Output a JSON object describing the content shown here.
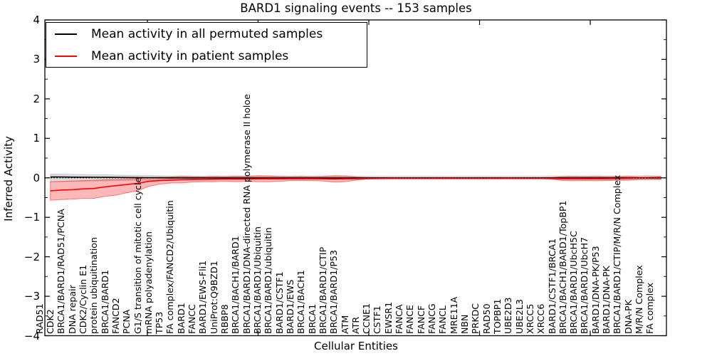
{
  "title": "BARD1 signaling events -- 153 samples",
  "legend": [
    {
      "label": "Mean activity in all permuted samples",
      "color": "#000000"
    },
    {
      "label": "Mean activity in patient samples",
      "color": "#ff0000"
    }
  ],
  "axes": {
    "xlabel": "Cellular Entities",
    "ylabel": "Inferred Activity",
    "yticklabels": [
      "4",
      "3",
      "2",
      "1",
      "0",
      "−1",
      "−2",
      "−3",
      "−4"
    ]
  },
  "chart_data": {
    "type": "line",
    "title": "BARD1 signaling events -- 153 samples",
    "xlabel": "Cellular Entities",
    "ylabel": "Inferred Activity",
    "ylim": [
      -4,
      4
    ],
    "yticks": [
      -4,
      -3,
      -2,
      -1,
      0,
      1,
      2,
      3,
      4
    ],
    "ytick_minor_step": 0.5,
    "grid": false,
    "legend_position": "upper left",
    "zero_line": {
      "y": 0,
      "style": "dotted",
      "color": "#000000"
    },
    "categories": [
      "RAD51",
      "CDK2",
      "BRCA1/BARD1/RAD51/PCNA",
      "DNA repair",
      "CDK2/Cyclin E1",
      "protein ubiquitination",
      "BRCA1/BARD1",
      "FANCD2",
      "PCNA",
      "G1/S transition of mitotic cell cycle",
      "mRNA polyadenylation",
      "TP53",
      "FA complex/FANCD2/Ubiquitin",
      "BARD1",
      "FANCC",
      "BARD1/EWS-Fli1",
      "UniProt:Q9BZD1",
      "RBBP8",
      "BRCA1/BACH1/BARD1",
      "BRCA1/BARD1/DNA-directed RNA polymerase II holoe",
      "BRCA1/BARD1/Ubiquitin",
      "BRCA1/BARD1/ubiquitin",
      "BARD1/CSTF1",
      "BARD1/EWS",
      "BRCA1/BACH1",
      "BRCA1",
      "BRCA1/BARD1/CTIP",
      "BRCA1/BARD1/P53",
      "ATM",
      "ATR",
      "CCNE1",
      "CSTF1",
      "EWSR1",
      "FANCA",
      "FANCE",
      "FANCF",
      "FANCG",
      "FANCL",
      "MRE11A",
      "NBN",
      "PRKDC",
      "RAD50",
      "TOPBP1",
      "UBE2D3",
      "UBE2L3",
      "XRCC5",
      "XRCC6",
      "BARD1/CSTF1/BRCA1",
      "BRCA1/BACH1/BARD1/TopBP1",
      "BRCA1/BARD1/UbcH5C",
      "BRCA1/BARD1/UbcH7",
      "BARD1/DNA-PK/P53",
      "BARD1/DNA-PK",
      "BRCA1/BARD1/CTIP/M/R/N Complex",
      "DNA-PK",
      "M/R/N Complex",
      "FA complex"
    ],
    "series": [
      {
        "name": "Mean activity in all permuted samples",
        "color": "#000000",
        "band_color": "rgba(0,0,0,0.14)",
        "band_edge": "rgba(0,0,0,0.10)",
        "values": [
          0.02,
          0.02,
          0.018,
          0.016,
          0.014,
          0.012,
          0.01,
          0.008,
          0.006,
          0.004,
          0.002,
          0,
          0,
          0,
          0,
          0,
          0,
          0,
          0,
          0,
          0,
          0,
          0,
          0,
          0,
          0,
          0,
          0,
          0,
          0,
          0,
          0,
          0,
          0,
          0,
          0,
          0,
          0,
          0,
          0,
          0,
          0,
          0,
          0,
          0,
          0,
          0,
          0,
          0,
          0,
          0,
          0,
          0,
          0,
          0,
          0,
          0
        ],
        "band_upper": [
          0.1,
          0.1,
          0.09,
          0.09,
          0.08,
          0.08,
          0.07,
          0.07,
          0.06,
          0.06,
          0.055,
          0.05,
          0.05,
          0.045,
          0.045,
          0.045,
          0.045,
          0.045,
          0.045,
          0.045,
          0.045,
          0.045,
          0.045,
          0.045,
          0.045,
          0.045,
          0.045,
          0.045,
          0.045,
          0.045,
          0.045,
          0.045,
          0.045,
          0.045,
          0.045,
          0.045,
          0.045,
          0.045,
          0.045,
          0.045,
          0.045,
          0.045,
          0.045,
          0.045,
          0.045,
          0.045,
          0.05,
          0.05,
          0.05,
          0.05,
          0.05,
          0.05,
          0.05,
          0.05,
          0.055,
          0.06,
          0.05
        ],
        "band_lower": [
          -0.1,
          -0.1,
          -0.09,
          -0.09,
          -0.08,
          -0.08,
          -0.07,
          -0.07,
          -0.06,
          -0.06,
          -0.055,
          -0.05,
          -0.05,
          -0.045,
          -0.045,
          -0.045,
          -0.045,
          -0.045,
          -0.045,
          -0.045,
          -0.045,
          -0.045,
          -0.045,
          -0.045,
          -0.045,
          -0.045,
          -0.045,
          -0.045,
          -0.045,
          -0.045,
          -0.045,
          -0.045,
          -0.045,
          -0.045,
          -0.045,
          -0.045,
          -0.045,
          -0.045,
          -0.045,
          -0.045,
          -0.045,
          -0.045,
          -0.045,
          -0.045,
          -0.045,
          -0.045,
          -0.05,
          -0.05,
          -0.05,
          -0.05,
          -0.05,
          -0.05,
          -0.05,
          -0.05,
          -0.055,
          -0.06,
          -0.05
        ]
      },
      {
        "name": "Mean activity in patient samples",
        "color": "#ff0000",
        "band_color": "rgba(255,0,0,0.28)",
        "band_edge": "rgba(255,0,0,0.45)",
        "values": [
          -0.33,
          -0.31,
          -0.3,
          -0.28,
          -0.27,
          -0.23,
          -0.2,
          -0.17,
          -0.14,
          -0.09,
          -0.07,
          -0.06,
          -0.05,
          -0.045,
          -0.04,
          -0.035,
          -0.03,
          -0.03,
          -0.03,
          -0.025,
          -0.025,
          -0.025,
          -0.02,
          -0.02,
          -0.02,
          -0.025,
          -0.03,
          -0.025,
          -0.02,
          -0.015,
          -0.015,
          -0.01,
          -0.01,
          -0.01,
          -0.01,
          -0.01,
          -0.01,
          -0.01,
          -0.01,
          -0.01,
          -0.01,
          -0.01,
          -0.01,
          -0.01,
          -0.01,
          -0.01,
          -0.015,
          -0.02,
          -0.02,
          -0.02,
          -0.02,
          -0.02,
          -0.015,
          -0.01,
          0.0,
          0.005,
          0.01
        ],
        "band_upper": [
          -0.1,
          -0.09,
          -0.08,
          -0.07,
          -0.06,
          -0.05,
          -0.04,
          -0.03,
          -0.02,
          0.0,
          0.01,
          0.02,
          0.035,
          0.03,
          0.025,
          0.035,
          0.03,
          0.04,
          0.035,
          0.055,
          0.05,
          0.035,
          0.03,
          0.035,
          0.03,
          0.035,
          0.055,
          0.05,
          0.02,
          0.01,
          0.005,
          0.005,
          0.005,
          0.005,
          0.005,
          0.005,
          0.005,
          0.005,
          0.005,
          0.005,
          0.005,
          0.005,
          0.005,
          0.005,
          0.005,
          0.005,
          0.01,
          0.03,
          0.035,
          0.03,
          0.035,
          0.03,
          0.03,
          0.035,
          0.02,
          0.02,
          0.03
        ],
        "band_lower": [
          -0.57,
          -0.55,
          -0.54,
          -0.52,
          -0.52,
          -0.47,
          -0.44,
          -0.38,
          -0.33,
          -0.22,
          -0.16,
          -0.13,
          -0.13,
          -0.11,
          -0.1,
          -0.1,
          -0.09,
          -0.1,
          -0.09,
          -0.1,
          -0.1,
          -0.09,
          -0.07,
          -0.07,
          -0.07,
          -0.08,
          -0.11,
          -0.1,
          -0.06,
          -0.03,
          -0.02,
          -0.02,
          -0.02,
          -0.02,
          -0.02,
          -0.02,
          -0.02,
          -0.02,
          -0.02,
          -0.02,
          -0.02,
          -0.02,
          -0.02,
          -0.02,
          -0.02,
          -0.02,
          -0.03,
          -0.07,
          -0.075,
          -0.07,
          -0.075,
          -0.07,
          -0.06,
          -0.06,
          -0.04,
          -0.03,
          -0.04
        ]
      }
    ]
  }
}
